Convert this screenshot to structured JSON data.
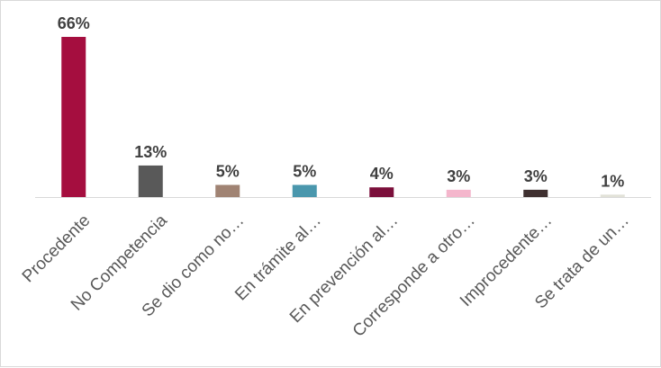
{
  "chart_data": {
    "type": "bar",
    "categories": [
      "Procedente",
      "No Competencia",
      "Se dio como no…",
      "En trámite al…",
      "En prevención al…",
      "Corresponde a otro…",
      "Improcedente…",
      "Se trata de un…"
    ],
    "values": [
      66,
      13,
      5,
      5,
      4,
      3,
      3,
      1
    ],
    "value_labels": [
      "66%",
      "13%",
      "5%",
      "5%",
      "4%",
      "3%",
      "3%",
      "1%"
    ],
    "colors": [
      "#a50e3f",
      "#595959",
      "#a08373",
      "#4a97ad",
      "#7b0f3b",
      "#f4b6cc",
      "#3f3030",
      "#e2e2d8"
    ],
    "ylim": [
      0,
      66
    ],
    "grid": false,
    "legend": "none",
    "title": "",
    "xlabel": "",
    "ylabel": ""
  }
}
